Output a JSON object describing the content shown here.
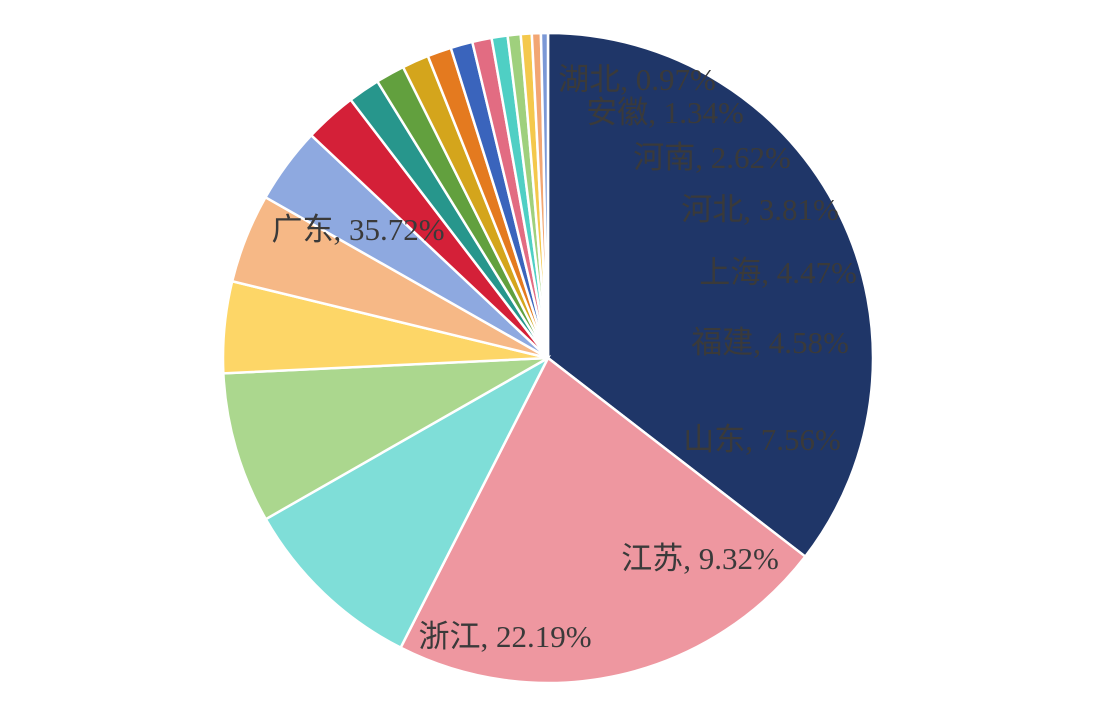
{
  "chart_data": {
    "type": "pie",
    "title": "",
    "slices": [
      {
        "name": "广东",
        "value": 35.72,
        "label": "广东, 35.72%",
        "color": "#1f3668",
        "label_color": "#ffffff"
      },
      {
        "name": "浙江",
        "value": 22.19,
        "label": "浙江, 22.19%",
        "color": "#ee97a0",
        "label_color": "#3a3a3a"
      },
      {
        "name": "江苏",
        "value": 9.32,
        "label": "江苏, 9.32%",
        "color": "#7fded8",
        "label_color": "#3a3a3a"
      },
      {
        "name": "山东",
        "value": 7.56,
        "label": "山东, 7.56%",
        "color": "#abd78e",
        "label_color": "#3a3a3a"
      },
      {
        "name": "福建",
        "value": 4.58,
        "label": "福建, 4.58%",
        "color": "#fdd667",
        "label_color": "#3a3a3a"
      },
      {
        "name": "上海",
        "value": 4.47,
        "label": "上海, 4.47%",
        "color": "#f6b886",
        "label_color": "#3a3a3a"
      },
      {
        "name": "河北",
        "value": 3.81,
        "label": "河北, 3.81%",
        "color": "#8ea9e0",
        "label_color": "#3a3a3a"
      },
      {
        "name": "河南",
        "value": 2.62,
        "label": "河南, 2.62%",
        "color": "#d42038",
        "label_color": "#3a3a3a"
      },
      {
        "name": "",
        "value": 1.6,
        "label": "",
        "color": "#27968c"
      },
      {
        "name": "",
        "value": 1.45,
        "label": "",
        "color": "#62a03e"
      },
      {
        "name": "安徽",
        "value": 1.34,
        "label": "安徽, 1.34%",
        "color": "#d4a51c",
        "label_color": "#3a3a3a"
      },
      {
        "name": "",
        "value": 1.2,
        "label": "",
        "color": "#e47a1f"
      },
      {
        "name": "",
        "value": 1.1,
        "label": "",
        "color": "#3a64bc"
      },
      {
        "name": "湖北",
        "value": 0.97,
        "label": "湖北, 0.97%",
        "color": "#e26c82",
        "label_color": "#3a3a3a"
      },
      {
        "name": "",
        "value": 0.8,
        "label": "",
        "color": "#4fcfc4"
      },
      {
        "name": "",
        "value": 0.65,
        "label": "",
        "color": "#9fd07d"
      },
      {
        "name": "",
        "value": 0.55,
        "label": "",
        "color": "#f4c84c"
      },
      {
        "name": "",
        "value": 0.45,
        "label": "",
        "color": "#f2a673"
      },
      {
        "name": "",
        "value": 0.35,
        "label": "",
        "color": "#7b98d6"
      }
    ],
    "legend": "none",
    "start_angle": "12 o'clock",
    "direction": "clockwise"
  }
}
